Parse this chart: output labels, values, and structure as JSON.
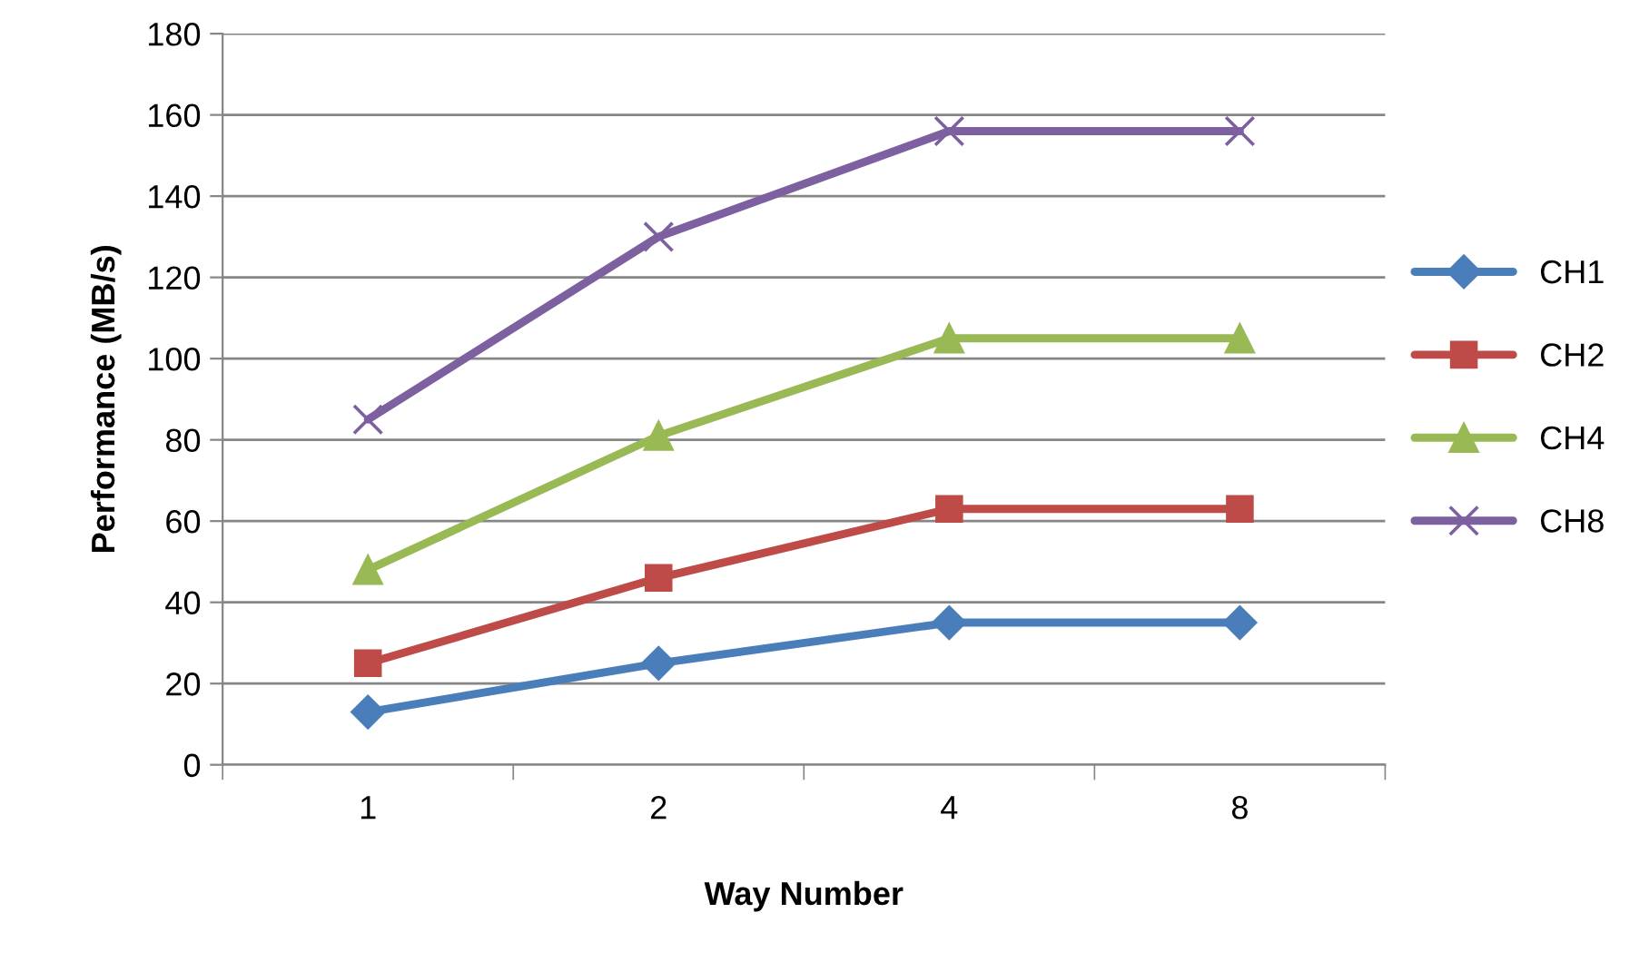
{
  "chart_data": {
    "type": "line",
    "xlabel": "Way Number",
    "ylabel": "Performance (MB/s)",
    "categories": [
      "1",
      "2",
      "4",
      "8"
    ],
    "series": [
      {
        "name": "CH1",
        "color": "#4a7ebb",
        "marker": "diamond",
        "values": [
          13,
          25,
          35,
          35
        ]
      },
      {
        "name": "CH2",
        "color": "#be4b48",
        "marker": "square",
        "values": [
          25,
          46,
          63,
          63
        ]
      },
      {
        "name": "CH4",
        "color": "#98b954",
        "marker": "triangle",
        "values": [
          48,
          81,
          105,
          105
        ]
      },
      {
        "name": "CH8",
        "color": "#7d60a0",
        "marker": "cross",
        "values": [
          85,
          130,
          156,
          156
        ]
      }
    ],
    "ylim": [
      0,
      180
    ],
    "yticks": [
      0,
      20,
      40,
      60,
      80,
      100,
      120,
      140,
      160,
      180
    ],
    "grid": "y",
    "legend": "right",
    "line_style": "solid"
  }
}
